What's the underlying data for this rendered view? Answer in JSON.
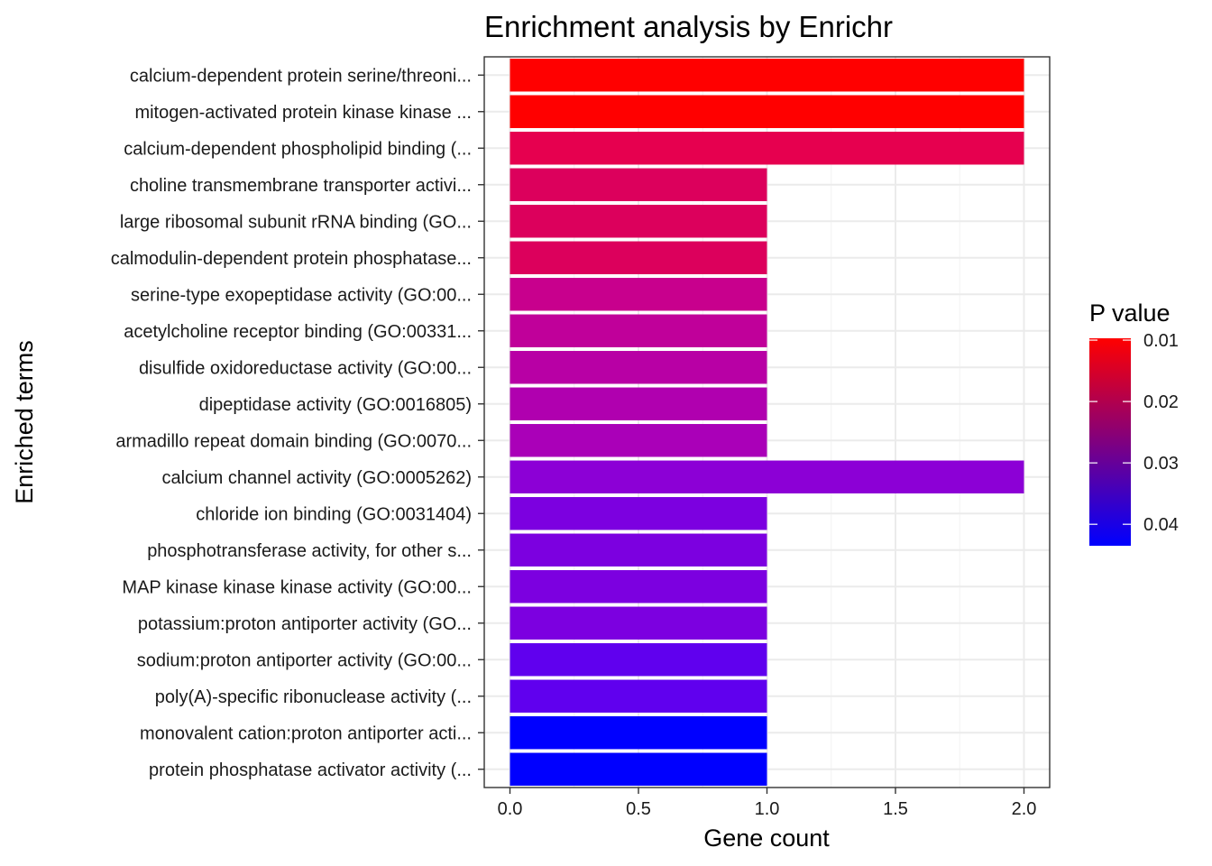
{
  "chart_data": {
    "type": "bar",
    "orientation": "horizontal",
    "title": "Enrichment analysis by Enrichr",
    "xlabel": "Gene count",
    "ylabel": "Enriched terms",
    "xlim": [
      -0.1,
      2.1
    ],
    "xticks": [
      {
        "value": 0.0,
        "label": "0.0"
      },
      {
        "value": 0.5,
        "label": "0.5"
      },
      {
        "value": 1.0,
        "label": "1.0"
      },
      {
        "value": 1.5,
        "label": "1.5"
      },
      {
        "value": 2.0,
        "label": "2.0"
      }
    ],
    "grid": true,
    "categories": [
      "calcium-dependent protein serine/threoni...",
      "mitogen-activated protein kinase kinase ...",
      "calcium-dependent phospholipid binding (...",
      "choline transmembrane transporter activi...",
      "large ribosomal subunit rRNA binding (GO...",
      "calmodulin-dependent protein phosphatase...",
      "serine-type exopeptidase activity (GO:00...",
      "acetylcholine receptor binding (GO:00331...",
      "disulfide oxidoreductase activity (GO:00...",
      "dipeptidase activity (GO:0016805)",
      "armadillo repeat domain binding (GO:0070...",
      "calcium channel activity (GO:0005262)",
      "chloride ion binding (GO:0031404)",
      "phosphotransferase activity, for other s...",
      "MAP kinase kinase kinase activity (GO:00...",
      "potassium:proton antiporter activity (GO...",
      "sodium:proton antiporter activity (GO:00...",
      "poly(A)-specific ribonuclease activity (...",
      "monovalent cation:proton antiporter acti...",
      "protein phosphatase activator activity (..."
    ],
    "values": [
      2,
      2,
      2,
      1,
      1,
      1,
      1,
      1,
      1,
      1,
      1,
      2,
      1,
      1,
      1,
      1,
      1,
      1,
      1,
      1
    ],
    "p_values": [
      0.0097,
      0.0097,
      0.0175,
      0.0185,
      0.0185,
      0.0185,
      0.024,
      0.025,
      0.026,
      0.027,
      0.0275,
      0.033,
      0.0345,
      0.0345,
      0.0345,
      0.0345,
      0.037,
      0.037,
      0.043,
      0.043
    ],
    "bar_colors": [
      "#ff0000",
      "#ff0000",
      "#e6004f",
      "#dc005c",
      "#dc005c",
      "#dc005c",
      "#c8008d",
      "#c0009a",
      "#b800a5",
      "#b000af",
      "#aa00b8",
      "#8c00d6",
      "#7c00e0",
      "#7c00e0",
      "#7c00e0",
      "#7c00e0",
      "#6000ee",
      "#6000ee",
      "#0000ff",
      "#0000ff"
    ],
    "legend": {
      "title": "P value",
      "position": "right",
      "gradient": [
        "#ff0000",
        "#0000ff"
      ],
      "range": [
        0.0097,
        0.0435
      ],
      "ticks": [
        {
          "value": 0.01,
          "label": "0.01"
        },
        {
          "value": 0.02,
          "label": "0.02"
        },
        {
          "value": 0.03,
          "label": "0.03"
        },
        {
          "value": 0.04,
          "label": "0.04"
        }
      ]
    }
  }
}
